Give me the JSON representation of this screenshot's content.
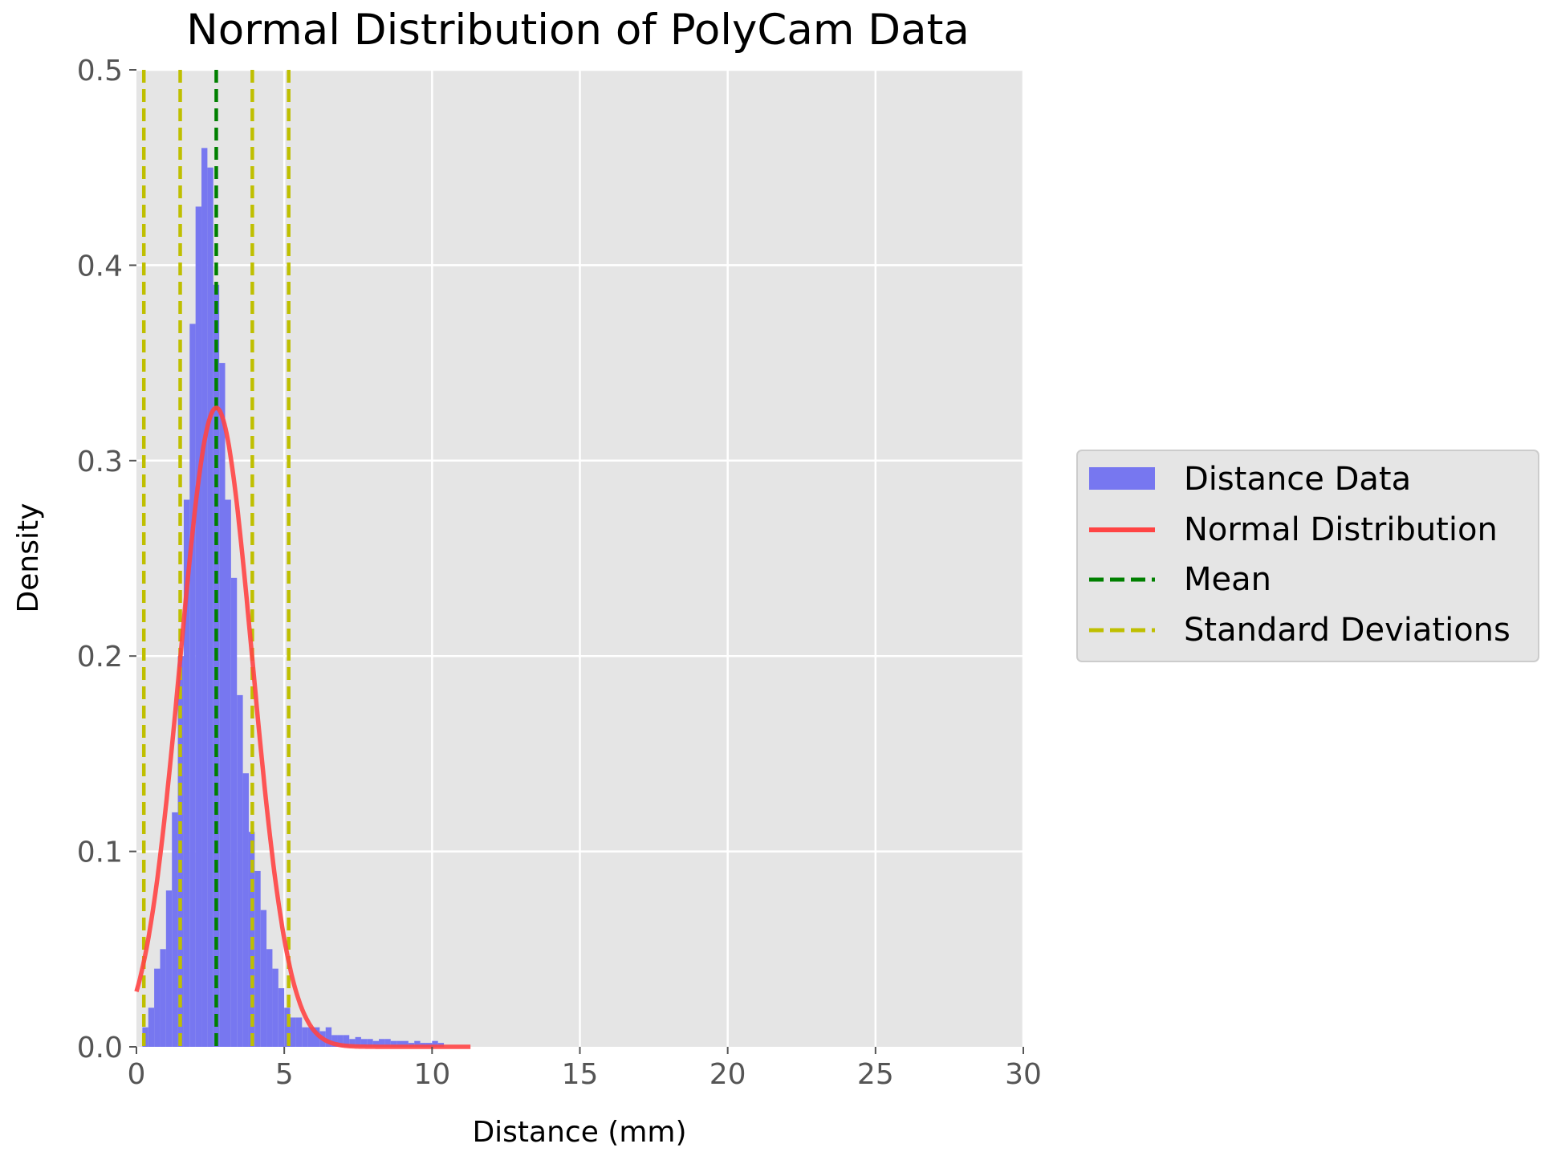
{
  "chart_data": {
    "type": "bar",
    "title": "Normal Distribution of PolyCam Data",
    "xlabel": "Distance (mm)",
    "ylabel": "Density",
    "xlim": [
      0,
      30
    ],
    "ylim": [
      0,
      0.5
    ],
    "xticks": [
      0,
      5,
      10,
      15,
      20,
      25,
      30
    ],
    "xtick_labels": [
      "0",
      "5",
      "10",
      "15",
      "20",
      "25",
      "30"
    ],
    "yticks": [
      0.0,
      0.1,
      0.2,
      0.3,
      0.4,
      0.5
    ],
    "ytick_labels": [
      "0.0",
      "0.1",
      "0.2",
      "0.3",
      "0.4",
      "0.5"
    ],
    "grid": true,
    "background": "#e5e5e5",
    "legend_position": "right, outside plot",
    "histogram": {
      "name": "Distance Data",
      "color": "#7777f0",
      "bin_width": 0.2,
      "bin_starts": [
        0.2,
        0.4,
        0.6,
        0.8,
        1.0,
        1.2,
        1.4,
        1.6,
        1.8,
        2.0,
        2.2,
        2.4,
        2.6,
        2.8,
        3.0,
        3.2,
        3.4,
        3.6,
        3.8,
        4.0,
        4.2,
        4.4,
        4.6,
        4.8,
        5.0,
        5.2,
        5.4,
        5.6,
        5.8,
        6.0,
        6.2,
        6.4,
        6.6,
        6.8,
        7.0,
        7.2,
        7.4,
        7.6,
        7.8,
        8.0,
        8.2,
        8.4,
        8.6,
        8.8,
        9.0,
        9.2,
        9.4,
        9.6,
        9.8,
        10.0,
        10.2
      ],
      "densities": [
        0.01,
        0.02,
        0.04,
        0.05,
        0.08,
        0.12,
        0.2,
        0.28,
        0.37,
        0.43,
        0.46,
        0.45,
        0.39,
        0.35,
        0.28,
        0.24,
        0.18,
        0.14,
        0.11,
        0.09,
        0.07,
        0.05,
        0.04,
        0.03,
        0.02,
        0.015,
        0.015,
        0.01,
        0.01,
        0.01,
        0.008,
        0.01,
        0.006,
        0.006,
        0.006,
        0.004,
        0.005,
        0.004,
        0.004,
        0.003,
        0.004,
        0.004,
        0.003,
        0.003,
        0.003,
        0.002,
        0.003,
        0.002,
        0.002,
        0.003,
        0.002
      ]
    },
    "normal_curve": {
      "name": "Normal Distribution",
      "color": "#ff4444",
      "mean": 2.7,
      "std": 1.22,
      "x_range": [
        0,
        11.3
      ]
    },
    "vlines": [
      {
        "name": "Mean",
        "x": 2.7,
        "color": "#008000",
        "style": "dashed"
      },
      {
        "name": "Standard Deviations",
        "x": 0.25,
        "color": "#bfbf00",
        "style": "dashed"
      },
      {
        "name": "Standard Deviations",
        "x": 1.48,
        "color": "#bfbf00",
        "style": "dashed"
      },
      {
        "name": "Standard Deviations",
        "x": 3.92,
        "color": "#bfbf00",
        "style": "dashed"
      },
      {
        "name": "Standard Deviations",
        "x": 5.15,
        "color": "#bfbf00",
        "style": "dashed"
      }
    ],
    "legend": [
      {
        "label": "Distance Data",
        "kind": "patch",
        "color": "#7777f0"
      },
      {
        "label": "Normal Distribution",
        "kind": "line",
        "color": "#ff4444"
      },
      {
        "label": "Mean",
        "kind": "dashed",
        "color": "#008000"
      },
      {
        "label": "Standard Deviations",
        "kind": "dashed",
        "color": "#bfbf00"
      }
    ]
  }
}
